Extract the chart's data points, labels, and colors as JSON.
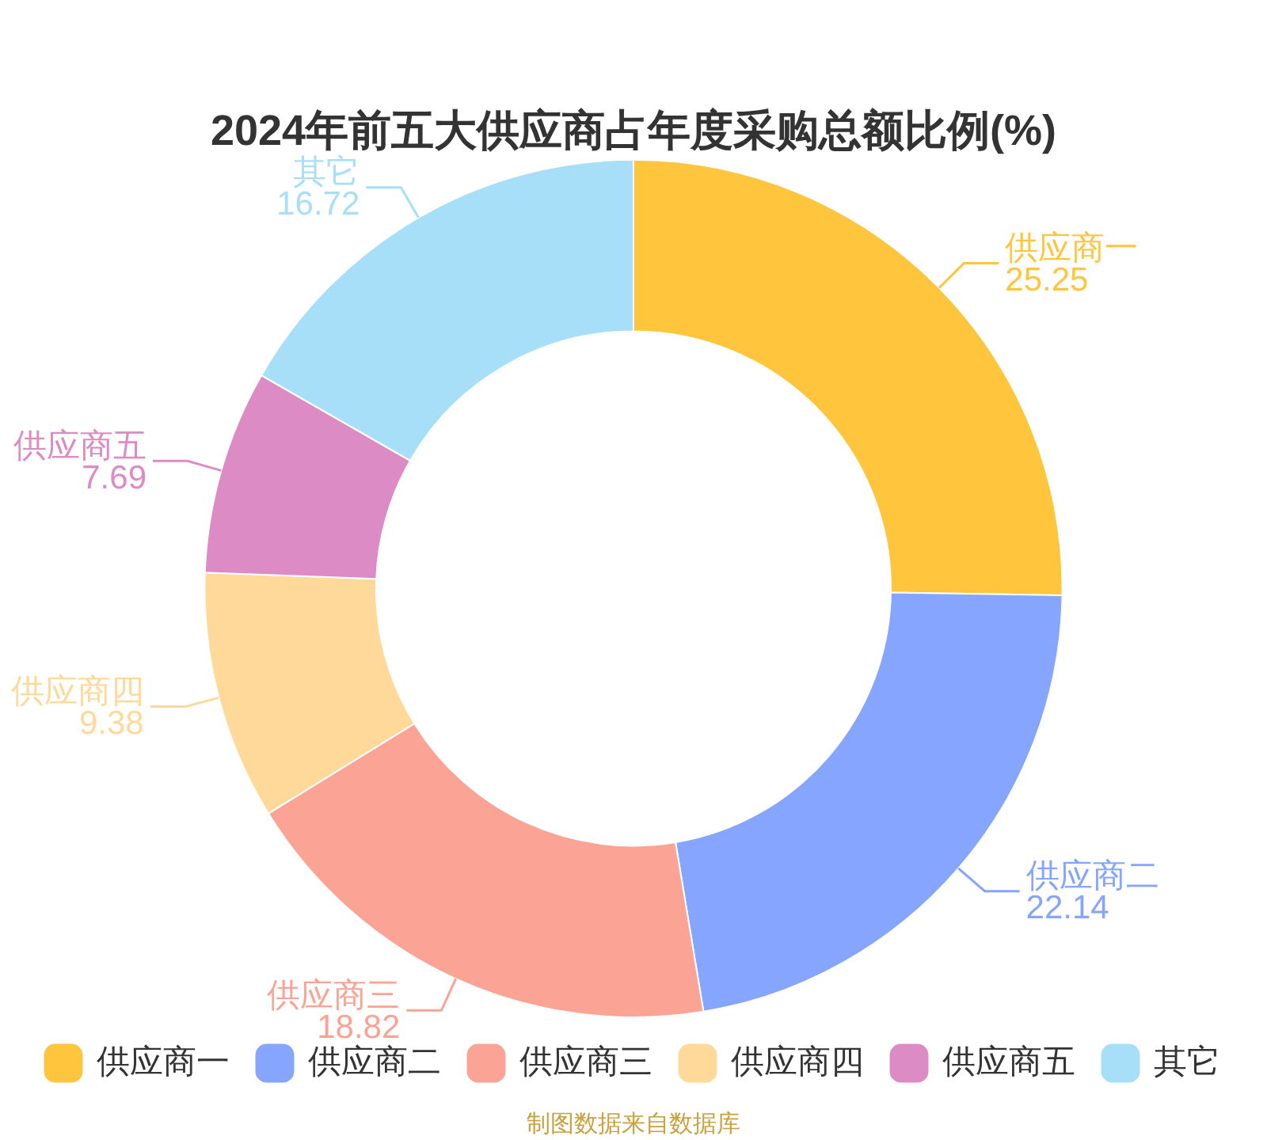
{
  "chart_data": {
    "type": "donut",
    "title": "2024年前五大供应商占年度采购总额比例(%)",
    "categories": [
      "供应商一",
      "供应商二",
      "供应商三",
      "供应商四",
      "供应商五",
      "其它"
    ],
    "values": [
      25.25,
      22.14,
      18.82,
      9.38,
      7.69,
      16.72
    ],
    "colors": [
      "#ffc53d",
      "#85a5ff",
      "#fba496",
      "#ffd99a",
      "#dc8bc4",
      "#a8dff8"
    ],
    "data_labels": true,
    "legend": "bottom",
    "annotations": [
      "制图数据来自数据库"
    ]
  }
}
